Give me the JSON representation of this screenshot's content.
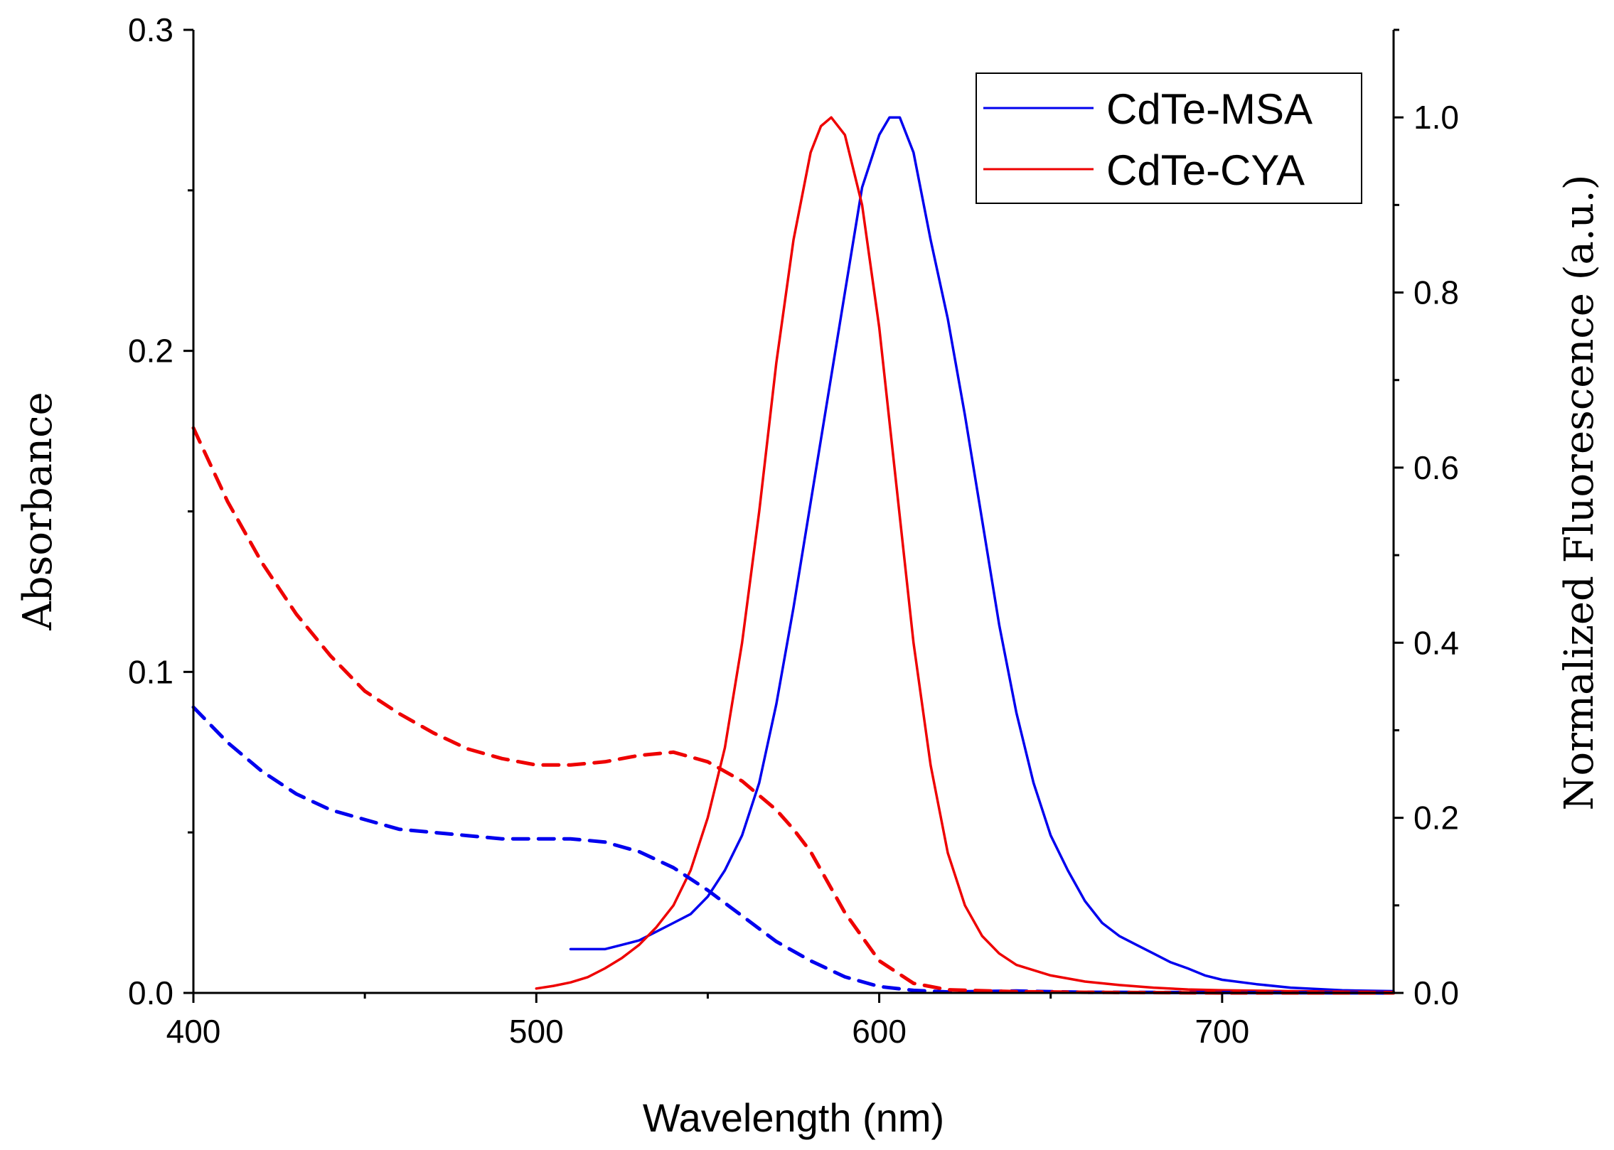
{
  "chart_data": {
    "type": "line",
    "title": "",
    "xlabel": "Wavelength (nm)",
    "ylabel": "Absorbance",
    "y2label": "Normalized Fluorescence (a.u.)",
    "xlim": [
      400,
      750
    ],
    "ylim": [
      0,
      0.3
    ],
    "y2lim": [
      0,
      1.1
    ],
    "xticks": [
      "400",
      "500",
      "600",
      "700"
    ],
    "xtick_values": [
      400,
      500,
      600,
      700
    ],
    "yticks": [
      "0.0",
      "0.1",
      "0.2",
      "0.3"
    ],
    "ytick_values": [
      0,
      0.1,
      0.2,
      0.3
    ],
    "y2ticks": [
      "0.0",
      "0.2",
      "0.4",
      "0.6",
      "0.8",
      "1.0"
    ],
    "y2tick_values": [
      0,
      0.2,
      0.4,
      0.6,
      0.8,
      1.0
    ],
    "grid": false,
    "legend_position": "top-right",
    "legend": [
      {
        "name": "CdTe-MSA",
        "color": "#0000ee"
      },
      {
        "name": "CdTe-CYA",
        "color": "#ee0000"
      }
    ],
    "series": [
      {
        "name": "CdTe-MSA fluorescence",
        "color": "#0000ee",
        "style": "solid",
        "axis": "right",
        "x": [
          510,
          515,
          520,
          525,
          530,
          535,
          540,
          545,
          550,
          555,
          560,
          565,
          570,
          575,
          580,
          585,
          590,
          595,
          600,
          603,
          606,
          610,
          615,
          620,
          625,
          630,
          635,
          640,
          645,
          650,
          655,
          660,
          665,
          670,
          675,
          680,
          685,
          690,
          695,
          700,
          710,
          720,
          735,
          750
        ],
        "y": [
          0.05,
          0.05,
          0.05,
          0.055,
          0.06,
          0.07,
          0.08,
          0.09,
          0.11,
          0.14,
          0.18,
          0.24,
          0.33,
          0.44,
          0.56,
          0.68,
          0.8,
          0.92,
          0.98,
          1.0,
          1.0,
          0.96,
          0.86,
          0.77,
          0.66,
          0.54,
          0.42,
          0.32,
          0.24,
          0.18,
          0.14,
          0.105,
          0.08,
          0.065,
          0.055,
          0.045,
          0.035,
          0.028,
          0.02,
          0.015,
          0.01,
          0.006,
          0.003,
          0.002
        ]
      },
      {
        "name": "CdTe-CYA fluorescence",
        "color": "#ee0000",
        "style": "solid",
        "axis": "right",
        "x": [
          500,
          505,
          510,
          515,
          520,
          525,
          530,
          535,
          540,
          545,
          550,
          555,
          560,
          565,
          570,
          575,
          580,
          583,
          586,
          590,
          595,
          600,
          605,
          610,
          615,
          620,
          625,
          630,
          635,
          640,
          650,
          660,
          670,
          680,
          690,
          700,
          720,
          750
        ],
        "y": [
          0.005,
          0.008,
          0.012,
          0.018,
          0.028,
          0.04,
          0.055,
          0.075,
          0.1,
          0.14,
          0.2,
          0.28,
          0.4,
          0.55,
          0.72,
          0.86,
          0.96,
          0.99,
          1.0,
          0.98,
          0.9,
          0.76,
          0.58,
          0.4,
          0.26,
          0.16,
          0.1,
          0.065,
          0.045,
          0.032,
          0.02,
          0.013,
          0.009,
          0.006,
          0.004,
          0.003,
          0.002,
          0.001
        ]
      },
      {
        "name": "CdTe-MSA absorbance",
        "color": "#0000ee",
        "style": "dashed",
        "axis": "left",
        "x": [
          400,
          410,
          420,
          430,
          440,
          450,
          460,
          470,
          480,
          490,
          500,
          510,
          520,
          530,
          540,
          550,
          560,
          570,
          580,
          590,
          600,
          610,
          620,
          640,
          660,
          700,
          750
        ],
        "y": [
          0.089,
          0.078,
          0.069,
          0.062,
          0.057,
          0.054,
          0.051,
          0.05,
          0.049,
          0.048,
          0.048,
          0.048,
          0.047,
          0.044,
          0.039,
          0.032,
          0.024,
          0.016,
          0.01,
          0.005,
          0.002,
          0.0008,
          0.0003,
          0.0006,
          0.0002,
          0.0001,
          0.0
        ]
      },
      {
        "name": "CdTe-CYA absorbance",
        "color": "#ee0000",
        "style": "dashed",
        "axis": "left",
        "x": [
          400,
          410,
          420,
          430,
          440,
          450,
          460,
          470,
          480,
          490,
          500,
          510,
          520,
          530,
          540,
          550,
          560,
          570,
          575,
          580,
          590,
          600,
          610,
          620,
          640,
          660,
          700,
          750
        ],
        "y": [
          0.176,
          0.153,
          0.134,
          0.118,
          0.105,
          0.094,
          0.087,
          0.081,
          0.076,
          0.073,
          0.071,
          0.071,
          0.072,
          0.074,
          0.075,
          0.072,
          0.066,
          0.057,
          0.051,
          0.044,
          0.025,
          0.01,
          0.003,
          0.001,
          0.0004,
          0.0002,
          0.0,
          0.0
        ]
      }
    ]
  }
}
